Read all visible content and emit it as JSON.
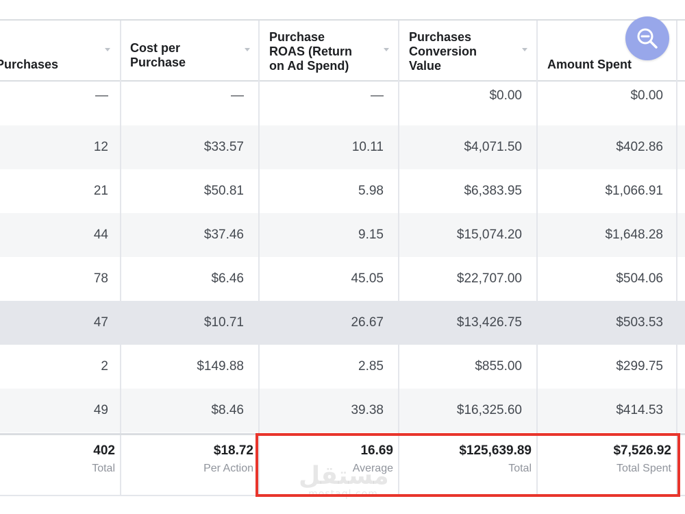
{
  "table": {
    "columns": [
      {
        "label": "Purchases",
        "key": "purchases"
      },
      {
        "label": "Cost per\nPurchase",
        "key": "cost_per_purchase"
      },
      {
        "label": "Purchase\nROAS (Return\non Ad Spend)",
        "key": "roas"
      },
      {
        "label": "Purchases\nConversion\nValue",
        "key": "conversion_value"
      },
      {
        "label": "Amount Spent",
        "key": "amount_spent"
      }
    ],
    "rows": [
      [
        "—",
        "—",
        "—",
        "$0.00",
        "$0.00"
      ],
      [
        "12",
        "$33.57",
        "10.11",
        "$4,071.50",
        "$402.86"
      ],
      [
        "21",
        "$50.81",
        "5.98",
        "$6,383.95",
        "$1,066.91"
      ],
      [
        "44",
        "$37.46",
        "9.15",
        "$15,074.20",
        "$1,648.28"
      ],
      [
        "78",
        "$6.46",
        "45.05",
        "$22,707.00",
        "$504.06"
      ],
      [
        "47",
        "$10.71",
        "26.67",
        "$13,426.75",
        "$503.53"
      ],
      [
        "2",
        "$149.88",
        "2.85",
        "$855.00",
        "$299.75"
      ],
      [
        "49",
        "$8.46",
        "39.38",
        "$16,325.60",
        "$414.53"
      ]
    ],
    "totals": [
      {
        "value": "402",
        "label": "Total"
      },
      {
        "value": "$18.72",
        "label": "Per Action"
      },
      {
        "value": "16.69",
        "label": "Average"
      },
      {
        "value": "$125,639.89",
        "label": "Total"
      },
      {
        "value": "$7,526.92",
        "label": "Total Spent"
      }
    ]
  },
  "zoom_button": {
    "icon": "zoom-out-icon"
  },
  "watermark": {
    "arabic": "مستقل",
    "latin": "mostaql.com"
  },
  "colors": {
    "highlight_border": "#e8352c",
    "zoom_button_bg": "#98a7ea",
    "row_alt": "#f5f6f7",
    "row_selected": "#e4e6eb"
  }
}
